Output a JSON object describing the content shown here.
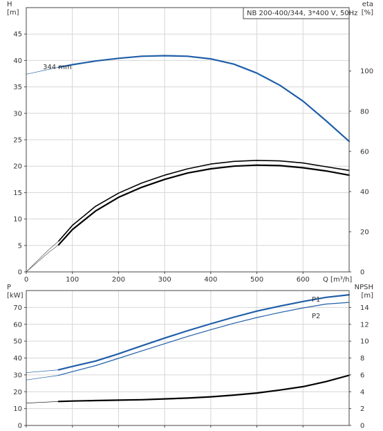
{
  "chart_data": [
    {
      "type": "line",
      "title": "NB 200-400/344, 3*400 V, 50Hz",
      "annotation": "344 mm",
      "xlabel": "Q [m³/h]",
      "xlim": [
        0,
        700
      ],
      "x_ticks": [
        0,
        100,
        200,
        300,
        400,
        500,
        600
      ],
      "grid": true,
      "y_axes": [
        {
          "side": "left",
          "label_lines": [
            "H",
            "[m]"
          ],
          "ylim": [
            0,
            50
          ],
          "ticks": [
            0,
            5,
            10,
            15,
            20,
            25,
            30,
            35,
            40,
            45
          ]
        },
        {
          "side": "right",
          "label_lines": [
            "eta",
            "[%]"
          ],
          "ylim": [
            0,
            131.6
          ],
          "ticks": [
            0,
            20,
            40,
            60,
            80,
            100
          ]
        }
      ],
      "series": [
        {
          "name": "H",
          "axis": "left",
          "color": "#1f5ea8",
          "width": 2.2,
          "x": [
            70,
            100,
            150,
            200,
            250,
            300,
            350,
            400,
            450,
            500,
            550,
            600,
            650,
            700
          ],
          "y": [
            38.7,
            39.2,
            39.9,
            40.4,
            40.8,
            40.9,
            40.8,
            40.3,
            39.3,
            37.6,
            35.3,
            32.3,
            28.6,
            24.7
          ]
        },
        {
          "axis": "left",
          "color": "#1f5ea8",
          "width": 0.7,
          "x": [
            0,
            70
          ],
          "y": [
            37.4,
            38.7
          ]
        },
        {
          "name": "eta",
          "axis": "left",
          "color": "#000000",
          "width": 1.6,
          "x": [
            70,
            100,
            150,
            200,
            250,
            300,
            350,
            400,
            450,
            500,
            550,
            600,
            650,
            700
          ],
          "y": [
            5.8,
            8.8,
            12.4,
            14.9,
            16.8,
            18.3,
            19.5,
            20.4,
            20.9,
            21.1,
            21.0,
            20.6,
            19.9,
            19.2
          ]
        },
        {
          "axis": "left",
          "color": "#000000",
          "width": 2.2,
          "x": [
            70,
            100,
            150,
            200,
            250,
            300,
            350,
            400,
            450,
            500,
            550,
            600,
            650,
            700
          ],
          "y": [
            5.1,
            8.0,
            11.5,
            14.1,
            16.0,
            17.5,
            18.7,
            19.5,
            20.0,
            20.2,
            20.1,
            19.7,
            19.1,
            18.3
          ]
        },
        {
          "axis": "left",
          "color": "#555555",
          "width": 0.7,
          "x": [
            0,
            25,
            50,
            70
          ],
          "y": [
            0,
            2.2,
            4.3,
            5.8
          ]
        },
        {
          "axis": "left",
          "color": "#555555",
          "width": 0.7,
          "x": [
            0,
            25,
            50,
            70
          ],
          "y": [
            0,
            1.9,
            3.8,
            5.1
          ]
        }
      ]
    },
    {
      "type": "line",
      "xlim": [
        0,
        700
      ],
      "x_ticks": [
        0,
        100,
        200,
        300,
        400,
        500,
        600
      ],
      "grid": true,
      "y_axes": [
        {
          "side": "left",
          "label_lines": [
            "P",
            "[kW]"
          ],
          "ylim": [
            0,
            80
          ],
          "ticks": [
            0,
            10,
            20,
            30,
            40,
            50,
            60,
            70
          ]
        },
        {
          "side": "right",
          "label_lines": [
            "NPSH",
            "[m]"
          ],
          "ylim": [
            0,
            16
          ],
          "ticks": [
            0,
            2,
            4,
            6,
            8,
            10,
            12,
            14
          ]
        }
      ],
      "series": [
        {
          "name": "P1",
          "axis": "left",
          "color": "#1f5ea8",
          "width": 2.2,
          "x": [
            70,
            100,
            150,
            200,
            250,
            300,
            350,
            400,
            450,
            500,
            550,
            600,
            650,
            700
          ],
          "y": [
            33.0,
            35.0,
            38.2,
            42.5,
            47.2,
            51.8,
            56.2,
            60.3,
            64.2,
            67.8,
            70.8,
            73.5,
            76.0,
            77.5
          ]
        },
        {
          "name": "P2",
          "axis": "left",
          "color": "#1f5ea8",
          "width": 1.2,
          "x": [
            70,
            100,
            150,
            200,
            250,
            300,
            350,
            400,
            450,
            500,
            550,
            600,
            650,
            700
          ],
          "y": [
            29.7,
            31.9,
            35.5,
            39.8,
            44.2,
            48.5,
            52.8,
            56.8,
            60.6,
            64.0,
            67.0,
            69.7,
            72.0,
            73.0
          ]
        },
        {
          "axis": "left",
          "color": "#1f5ea8",
          "width": 0.7,
          "x": [
            0,
            70
          ],
          "y": [
            31.3,
            33.0
          ]
        },
        {
          "axis": "left",
          "color": "#1f5ea8",
          "width": 0.7,
          "x": [
            0,
            70
          ],
          "y": [
            27.0,
            29.7
          ]
        },
        {
          "name": "NPSH",
          "axis": "right",
          "color": "#000000",
          "width": 2.2,
          "x": [
            70,
            100,
            150,
            200,
            250,
            300,
            350,
            400,
            450,
            500,
            550,
            600,
            650,
            700
          ],
          "y": [
            2.85,
            2.9,
            2.95,
            3.0,
            3.05,
            3.15,
            3.25,
            3.4,
            3.6,
            3.85,
            4.2,
            4.6,
            5.2,
            5.95
          ]
        },
        {
          "axis": "right",
          "color": "#000000",
          "width": 0.7,
          "x": [
            0,
            70
          ],
          "y": [
            2.65,
            2.85
          ]
        }
      ]
    }
  ]
}
